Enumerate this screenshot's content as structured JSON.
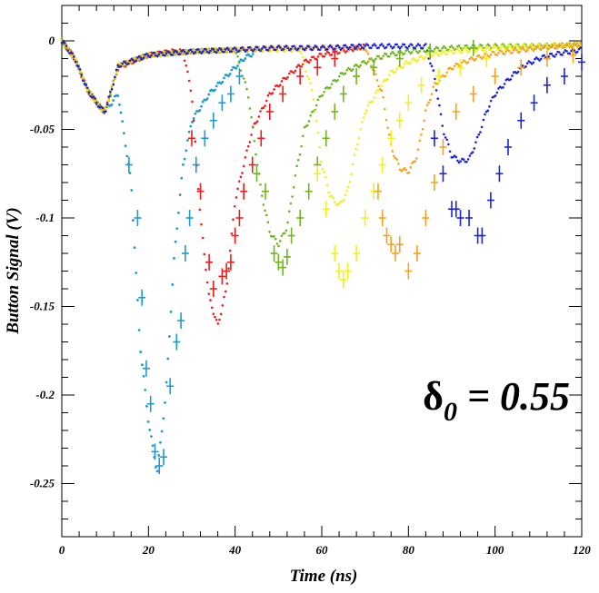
{
  "chart_data": {
    "type": "scatter",
    "xlabel": "Time (ns)",
    "ylabel": "Button Signal (V)",
    "xlim": [
      0,
      120
    ],
    "ylim": [
      -0.28,
      0.02
    ],
    "x_ticks": [
      0,
      20,
      40,
      60,
      80,
      100,
      120
    ],
    "x_tick_labels": [
      "0",
      "20",
      "40",
      "60",
      "80",
      "100",
      "120"
    ],
    "y_ticks": [
      0,
      -0.05,
      -0.1,
      -0.15,
      -0.2,
      -0.25
    ],
    "y_tick_labels": [
      "0",
      "-0.05",
      "-0.1",
      "-0.15",
      "-0.2",
      "-0.25"
    ],
    "grid": false,
    "legend": "none",
    "annotation": {
      "symbol": "δ",
      "subscript": "0",
      "text": " = 0.55",
      "x": 98,
      "y": -0.198
    },
    "series": [
      {
        "color": "#1f9bd0",
        "start": 0,
        "end": 45,
        "t": [
          0,
          3,
          6,
          9,
          10,
          13,
          16,
          18,
          20,
          22,
          24,
          26,
          28,
          30,
          34,
          38,
          42,
          45
        ],
        "v": [
          0,
          -0.01,
          -0.028,
          -0.038,
          -0.04,
          -0.03,
          -0.08,
          -0.17,
          -0.215,
          -0.244,
          -0.2,
          -0.12,
          -0.07,
          -0.045,
          -0.03,
          -0.02,
          -0.01,
          -0.006
        ],
        "errors": [
          [
            15.5,
            -0.07
          ],
          [
            17.5,
            -0.1
          ],
          [
            18.5,
            -0.145
          ],
          [
            19.5,
            -0.185
          ],
          [
            20.5,
            -0.205
          ],
          [
            21.5,
            -0.232
          ],
          [
            22.5,
            -0.24
          ],
          [
            23.5,
            -0.235
          ],
          [
            25,
            -0.195
          ],
          [
            26.5,
            -0.17
          ],
          [
            27.5,
            -0.158
          ],
          [
            28.5,
            -0.12
          ],
          [
            29.5,
            -0.1
          ],
          [
            31,
            -0.07
          ],
          [
            33,
            -0.055
          ],
          [
            35,
            -0.045
          ],
          [
            37,
            -0.035
          ],
          [
            39,
            -0.03
          ],
          [
            41,
            -0.02
          ]
        ]
      },
      {
        "color": "#ee1c1c",
        "start": 0,
        "end": 70,
        "t": [
          0,
          3,
          6,
          9,
          10,
          13,
          20,
          25,
          28,
          30,
          32,
          34,
          36,
          38,
          40,
          44,
          48,
          52,
          56,
          60,
          66,
          70
        ],
        "v": [
          0,
          -0.01,
          -0.028,
          -0.038,
          -0.04,
          -0.015,
          -0.008,
          -0.006,
          -0.006,
          -0.03,
          -0.1,
          -0.145,
          -0.161,
          -0.14,
          -0.09,
          -0.05,
          -0.03,
          -0.02,
          -0.012,
          -0.008,
          -0.005,
          -0.003
        ],
        "errors": [
          [
            30,
            -0.055
          ],
          [
            32,
            -0.085
          ],
          [
            34,
            -0.125
          ],
          [
            35,
            -0.14
          ],
          [
            37,
            -0.133
          ],
          [
            38,
            -0.13
          ],
          [
            39,
            -0.125
          ],
          [
            40,
            -0.11
          ],
          [
            41,
            -0.1
          ],
          [
            42,
            -0.085
          ],
          [
            44,
            -0.07
          ],
          [
            46,
            -0.055
          ],
          [
            48,
            -0.04
          ],
          [
            51,
            -0.03
          ],
          [
            55,
            -0.02
          ],
          [
            59,
            -0.015
          ],
          [
            63,
            -0.01
          ]
        ]
      },
      {
        "color": "#6fb51f",
        "start": 0,
        "end": 120,
        "t": [
          0,
          3,
          6,
          9,
          10,
          13,
          20,
          30,
          40,
          43,
          46,
          48,
          50,
          52,
          54,
          56,
          60,
          65,
          70,
          75,
          80,
          90,
          100,
          110,
          120
        ],
        "v": [
          0,
          -0.01,
          -0.028,
          -0.038,
          -0.04,
          -0.014,
          -0.008,
          -0.006,
          -0.005,
          -0.03,
          -0.085,
          -0.108,
          -0.115,
          -0.105,
          -0.075,
          -0.05,
          -0.03,
          -0.018,
          -0.012,
          -0.008,
          -0.006,
          -0.004,
          -0.003,
          -0.003,
          -0.002
        ],
        "errors": [
          [
            45,
            -0.075
          ],
          [
            47,
            -0.085
          ],
          [
            49,
            -0.12
          ],
          [
            50,
            -0.125
          ],
          [
            51,
            -0.128
          ],
          [
            52,
            -0.122
          ],
          [
            53,
            -0.11
          ],
          [
            55,
            -0.1
          ],
          [
            57,
            -0.085
          ],
          [
            59,
            -0.07
          ],
          [
            61,
            -0.055
          ],
          [
            63,
            -0.04
          ],
          [
            65,
            -0.03
          ],
          [
            68,
            -0.02
          ],
          [
            72,
            -0.015
          ],
          [
            78,
            -0.01
          ],
          [
            85,
            -0.006
          ],
          [
            95,
            -0.004
          ]
        ]
      },
      {
        "color": "#f2ef1c",
        "start": 0,
        "end": 120,
        "t": [
          0,
          3,
          6,
          9,
          10,
          13,
          20,
          30,
          40,
          50,
          55,
          58,
          60,
          62,
          64,
          66,
          68,
          70,
          73,
          76,
          80,
          85,
          90,
          100,
          110,
          120
        ],
        "v": [
          0,
          -0.01,
          -0.028,
          -0.038,
          -0.04,
          -0.014,
          -0.008,
          -0.006,
          -0.005,
          -0.005,
          -0.005,
          -0.03,
          -0.07,
          -0.088,
          -0.093,
          -0.085,
          -0.06,
          -0.04,
          -0.028,
          -0.018,
          -0.012,
          -0.008,
          -0.006,
          -0.004,
          -0.003,
          -0.002
        ],
        "errors": [
          [
            59,
            -0.075
          ],
          [
            61,
            -0.095
          ],
          [
            63,
            -0.12
          ],
          [
            64,
            -0.13
          ],
          [
            65,
            -0.135
          ],
          [
            66,
            -0.13
          ],
          [
            68,
            -0.12
          ],
          [
            70,
            -0.1
          ],
          [
            72,
            -0.085
          ],
          [
            74,
            -0.07
          ],
          [
            76,
            -0.055
          ],
          [
            78,
            -0.045
          ],
          [
            80,
            -0.035
          ],
          [
            83,
            -0.025
          ],
          [
            87,
            -0.02
          ],
          [
            92,
            -0.015
          ],
          [
            98,
            -0.01
          ]
        ]
      },
      {
        "color": "#f7a21c",
        "start": 0,
        "end": 120,
        "t": [
          0,
          3,
          6,
          9,
          10,
          13,
          20,
          30,
          40,
          50,
          60,
          70,
          74,
          76,
          78,
          80,
          82,
          84,
          86,
          90,
          95,
          100,
          110,
          120
        ],
        "v": [
          0,
          -0.01,
          -0.028,
          -0.038,
          -0.04,
          -0.014,
          -0.008,
          -0.006,
          -0.005,
          -0.004,
          -0.004,
          -0.004,
          -0.03,
          -0.06,
          -0.072,
          -0.074,
          -0.065,
          -0.04,
          -0.025,
          -0.015,
          -0.01,
          -0.007,
          -0.004,
          -0.002
        ],
        "errors": [
          [
            73,
            -0.085
          ],
          [
            74,
            -0.1
          ],
          [
            75,
            -0.11
          ],
          [
            76,
            -0.115
          ],
          [
            77,
            -0.12
          ],
          [
            78,
            -0.115
          ],
          [
            80,
            -0.13
          ],
          [
            82,
            -0.12
          ],
          [
            84,
            -0.1
          ],
          [
            86,
            -0.08
          ],
          [
            88,
            -0.06
          ],
          [
            91,
            -0.04
          ],
          [
            95,
            -0.03
          ],
          [
            100,
            -0.02
          ],
          [
            106,
            -0.015
          ],
          [
            112,
            -0.01
          ],
          [
            118,
            -0.008
          ]
        ]
      },
      {
        "color": "#1e24d0",
        "start": 0,
        "end": 120,
        "t": [
          0,
          3,
          6,
          9,
          10,
          13,
          20,
          30,
          40,
          50,
          60,
          70,
          80,
          84,
          86,
          88,
          90,
          92,
          94,
          96,
          98,
          100,
          103,
          106,
          110,
          115,
          120
        ],
        "v": [
          0,
          -0.01,
          -0.028,
          -0.038,
          -0.04,
          -0.014,
          -0.008,
          -0.006,
          -0.005,
          -0.004,
          -0.004,
          -0.003,
          -0.003,
          -0.003,
          -0.02,
          -0.05,
          -0.065,
          -0.068,
          -0.067,
          -0.055,
          -0.04,
          -0.03,
          -0.022,
          -0.015,
          -0.01,
          -0.007,
          -0.005
        ],
        "errors": [
          [
            86,
            -0.055
          ],
          [
            88,
            -0.075
          ],
          [
            90,
            -0.095
          ],
          [
            91,
            -0.095
          ],
          [
            92,
            -0.1
          ],
          [
            94,
            -0.1
          ],
          [
            96,
            -0.11
          ],
          [
            97,
            -0.11
          ],
          [
            99,
            -0.09
          ],
          [
            101,
            -0.075
          ],
          [
            103,
            -0.06
          ],
          [
            106,
            -0.045
          ],
          [
            109,
            -0.035
          ],
          [
            112,
            -0.025
          ],
          [
            116,
            -0.02
          ],
          [
            120,
            -0.012
          ]
        ]
      }
    ]
  }
}
